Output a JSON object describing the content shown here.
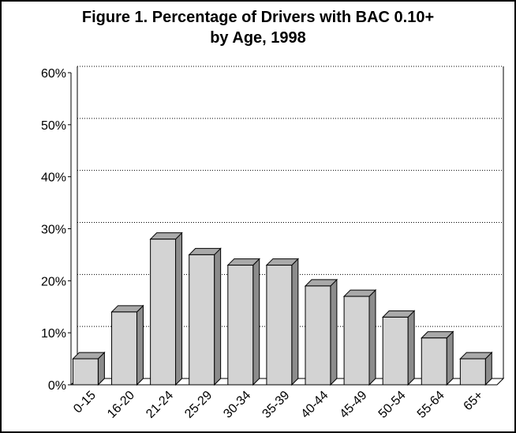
{
  "chart_data": {
    "type": "bar",
    "title": [
      "Figure 1.  Percentage of Drivers with BAC 0.10+",
      "by Age, 1998"
    ],
    "categories": [
      "0-15",
      "16-20",
      "21-24",
      "25-29",
      "30-34",
      "35-39",
      "40-44",
      "45-49",
      "50-54",
      "55-64",
      "65+"
    ],
    "values": [
      5,
      14,
      28,
      25,
      23,
      23,
      19,
      17,
      13,
      9,
      5
    ],
    "color": "#d3d3d3",
    "ylim": [
      0,
      60
    ],
    "yticks": [
      {
        "value": 0,
        "label": "0%"
      },
      {
        "value": 10,
        "label": "10%"
      },
      {
        "value": 20,
        "label": "20%"
      },
      {
        "value": 30,
        "label": "30%"
      },
      {
        "value": 40,
        "label": "40%"
      },
      {
        "value": 50,
        "label": "50%"
      },
      {
        "value": 60,
        "label": "60%"
      }
    ],
    "grid": true
  }
}
